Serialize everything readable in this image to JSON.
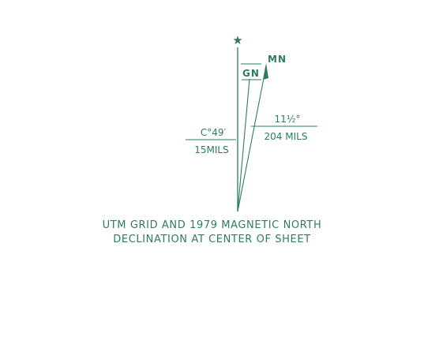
{
  "diagram": {
    "true_north_symbol": "★",
    "labels": {
      "magnetic_north": "MN",
      "grid_north": "GN",
      "mn_declination_degrees": "11½°",
      "mn_declination_mils": "204 MILS",
      "gn_declination_degrees": "C°49′",
      "gn_declination_mils": "15MILS"
    },
    "caption": {
      "line1": "UTM GRID AND 1979 MAGNETIC NORTH",
      "line2": "DECLINATION AT CENTER OF SHEET"
    },
    "colors": {
      "ink": "#2e7d5a",
      "background": "#ffffff"
    }
  }
}
